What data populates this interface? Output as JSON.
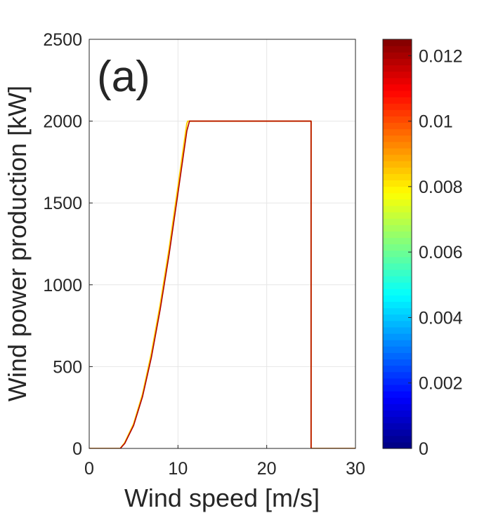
{
  "chart_data": {
    "type": "line",
    "panel_label": "(a)",
    "xlabel": "Wind speed [m/s]",
    "ylabel": "Wind power production [kW]",
    "xlim": [
      0,
      30
    ],
    "ylim": [
      0,
      2500
    ],
    "xticks": [
      0,
      10,
      20,
      30
    ],
    "yticks": [
      0,
      500,
      1000,
      1500,
      2000,
      2500
    ],
    "grid": true,
    "colormap": "jet",
    "colorbar": {
      "range": [
        0,
        0.0125
      ],
      "ticks": [
        0,
        0.002,
        0.004,
        0.006,
        0.008,
        0.01,
        0.012
      ],
      "tick_labels": [
        "0",
        "0.002",
        "0.004",
        "0.006",
        "0.008",
        "0.01",
        "0.012"
      ]
    },
    "series": [
      {
        "color": "#ffd000",
        "x": [
          0,
          3.5,
          4,
          5,
          6,
          7,
          8,
          9,
          10,
          11,
          11.1,
          25,
          25,
          30
        ],
        "y": [
          0,
          0,
          35,
          150,
          330,
          580,
          880,
          1220,
          1600,
          1985,
          2000,
          2000,
          0,
          0
        ]
      },
      {
        "color": "#b00000",
        "x": [
          0,
          3.5,
          4,
          5,
          6,
          7,
          8,
          9,
          10,
          11,
          11.3,
          25,
          25,
          30
        ],
        "y": [
          0,
          0,
          30,
          140,
          315,
          555,
          850,
          1185,
          1560,
          1940,
          2000,
          2000,
          0,
          0
        ]
      }
    ]
  }
}
